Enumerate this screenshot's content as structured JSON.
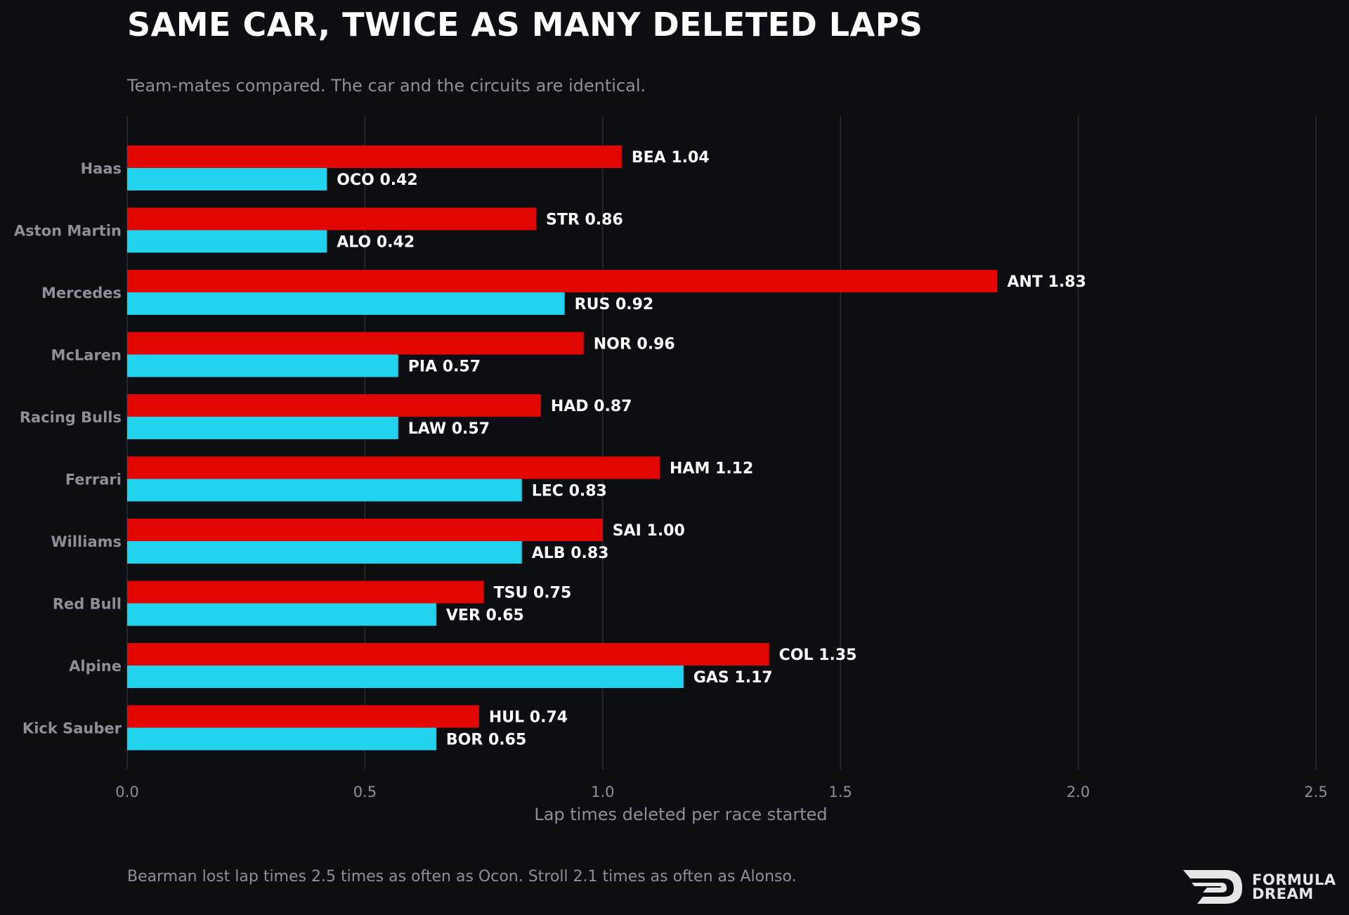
{
  "title": "SAME CAR, TWICE AS MANY DELETED LAPS",
  "subtitle": "Team-mates compared. The car and the circuits are identical.",
  "footnote": "Bearman lost lap times 2.5 times as often as Ocon. Stroll 2.1 times as often as Alonso.",
  "logo": {
    "line1": "FORMULA",
    "line2": "DREAM"
  },
  "chart_data": {
    "type": "bar",
    "orientation": "horizontal",
    "xlabel": "Lap times deleted per race started",
    "xlim": [
      0,
      2.5
    ],
    "xticks": [
      0.0,
      0.5,
      1.0,
      1.5,
      2.0,
      2.5
    ],
    "xtick_labels": [
      "0.0",
      "0.5",
      "1.0",
      "1.5",
      "2.0",
      "2.5"
    ],
    "grid": "vertical",
    "categories": [
      "Haas",
      "Aston Martin",
      "Mercedes",
      "McLaren",
      "Racing Bulls",
      "Ferrari",
      "Williams",
      "Red Bull",
      "Alpine",
      "Kick Sauber"
    ],
    "series": [
      {
        "color": "#e10600",
        "labels": [
          "BEA",
          "STR",
          "ANT",
          "NOR",
          "HAD",
          "HAM",
          "SAI",
          "TSU",
          "COL",
          "HUL"
        ],
        "values": [
          1.04,
          0.86,
          1.83,
          0.96,
          0.87,
          1.12,
          1.0,
          0.75,
          1.35,
          0.74
        ]
      },
      {
        "color": "#22d3ee",
        "labels": [
          "OCO",
          "ALO",
          "RUS",
          "PIA",
          "LAW",
          "LEC",
          "ALB",
          "VER",
          "GAS",
          "BOR"
        ],
        "values": [
          0.42,
          0.42,
          0.92,
          0.57,
          0.57,
          0.83,
          0.83,
          0.65,
          1.17,
          0.65
        ]
      }
    ],
    "colors": {
      "background": "#0d0e12",
      "grid": "#2a2c31",
      "muted_text": "#8e9096",
      "label_text": "#ffffff"
    }
  }
}
